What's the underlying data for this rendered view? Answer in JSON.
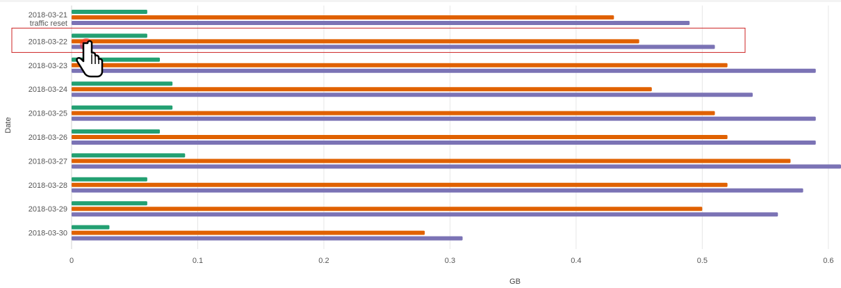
{
  "chart_data": {
    "type": "bar",
    "orientation": "horizontal",
    "categories": [
      {
        "date": "2018-03-21",
        "note": "traffic reset"
      },
      {
        "date": "2018-03-22",
        "note": ""
      },
      {
        "date": "2018-03-23",
        "note": ""
      },
      {
        "date": "2018-03-24",
        "note": ""
      },
      {
        "date": "2018-03-25",
        "note": ""
      },
      {
        "date": "2018-03-26",
        "note": ""
      },
      {
        "date": "2018-03-27",
        "note": ""
      },
      {
        "date": "2018-03-28",
        "note": ""
      },
      {
        "date": "2018-03-29",
        "note": ""
      },
      {
        "date": "2018-03-30",
        "note": ""
      }
    ],
    "series": [
      {
        "color": "#23a072",
        "values": [
          0.06,
          0.06,
          0.07,
          0.08,
          0.08,
          0.07,
          0.09,
          0.06,
          0.06,
          0.03
        ]
      },
      {
        "color": "#e06100",
        "values": [
          0.43,
          0.45,
          0.52,
          0.46,
          0.51,
          0.52,
          0.57,
          0.52,
          0.5,
          0.28
        ]
      },
      {
        "color": "#7b73b5",
        "values": [
          0.49,
          0.51,
          0.59,
          0.54,
          0.59,
          0.59,
          0.61,
          0.58,
          0.56,
          0.31
        ]
      }
    ],
    "x_ticks": [
      "0",
      "0.1",
      "0.2",
      "0.3",
      "0.4",
      "0.5",
      "0.6"
    ],
    "xlim": [
      0,
      0.61
    ],
    "xlabel": "GB",
    "ylabel": "Date",
    "grid": true,
    "legend": "none",
    "highlighted_category": "2018-03-22",
    "highlight_color": "#cc2222"
  }
}
